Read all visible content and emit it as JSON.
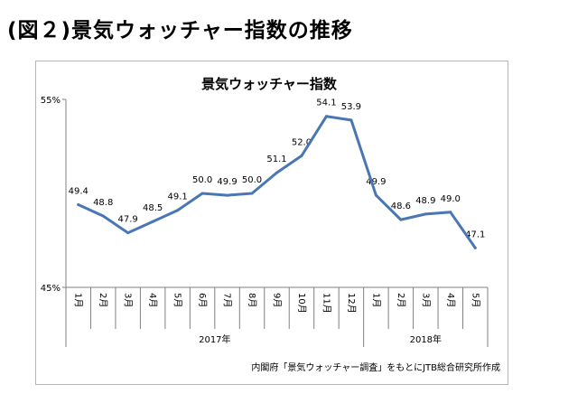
{
  "heading": "(図２)景気ウォッチャー指数の推移",
  "credit": "内閣府「景気ウォッチャー調査」をもとにJTB総合研究所作成",
  "chart_data": {
    "type": "line",
    "title": "景気ウォッチャー指数",
    "xlabel": "",
    "ylabel": "",
    "ylim": [
      45,
      55
    ],
    "y_ticks": [
      "45%",
      "55%"
    ],
    "categories": [
      "1月",
      "2月",
      "3月",
      "4月",
      "5月",
      "6月",
      "7月",
      "8月",
      "9月",
      "10月",
      "11月",
      "12月",
      "1月",
      "2月",
      "3月",
      "4月",
      "5月"
    ],
    "year_groups": [
      {
        "label": "2017年",
        "count": 12
      },
      {
        "label": "2018年",
        "count": 5
      }
    ],
    "series": [
      {
        "values": [
          49.4,
          48.8,
          47.9,
          48.5,
          49.1,
          50.0,
          49.9,
          50.0,
          51.1,
          52.0,
          54.1,
          53.9,
          49.9,
          48.6,
          48.9,
          49.0,
          47.1
        ],
        "labels": [
          "49.4",
          "48.8",
          "47.9",
          "48.5",
          "49.1",
          "50.0",
          "49.9",
          "50.0",
          "51.1",
          "52.0",
          "54.1",
          "53.9",
          "49.9",
          "48.6",
          "48.9",
          "49.0",
          "47.1"
        ]
      }
    ],
    "line_color": "#4a77b4",
    "grid": false,
    "legend": "none"
  }
}
